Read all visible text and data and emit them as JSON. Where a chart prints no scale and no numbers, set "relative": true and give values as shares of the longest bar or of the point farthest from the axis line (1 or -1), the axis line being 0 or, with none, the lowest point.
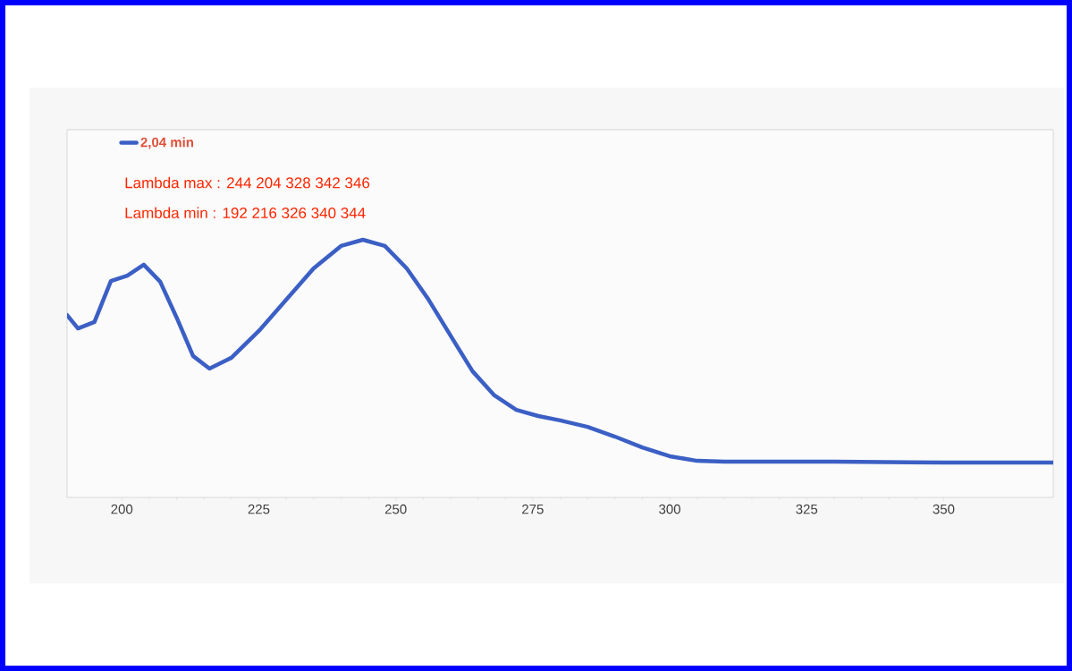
{
  "chart_data": {
    "type": "line",
    "relative": true,
    "annotations": [
      "Lambda max :   244   204   328   342   346",
      "Lambda min  :   192   216   326   340   344"
    ],
    "xlim": [
      190,
      370
    ],
    "xticks": [
      200,
      225,
      250,
      275,
      300,
      325,
      350
    ],
    "legend": "top left",
    "grid": false,
    "series": [
      {
        "name": "2,04 min",
        "color": "#3b5fc4",
        "x": [
          190,
          192,
          195,
          198,
          201,
          204,
          207,
          210,
          213,
          216,
          220,
          225,
          230,
          235,
          240,
          244,
          248,
          252,
          256,
          260,
          264,
          268,
          272,
          276,
          280,
          285,
          290,
          295,
          300,
          305,
          310,
          330,
          350,
          370
        ],
        "values": [
          0.708,
          0.656,
          0.681,
          0.84,
          0.861,
          0.903,
          0.837,
          0.698,
          0.549,
          0.5,
          0.542,
          0.646,
          0.767,
          0.889,
          0.976,
          1,
          0.976,
          0.889,
          0.767,
          0.628,
          0.49,
          0.396,
          0.34,
          0.316,
          0.299,
          0.274,
          0.236,
          0.194,
          0.16,
          0.142,
          0.139,
          0.139,
          0.135,
          0.135
        ]
      }
    ]
  }
}
